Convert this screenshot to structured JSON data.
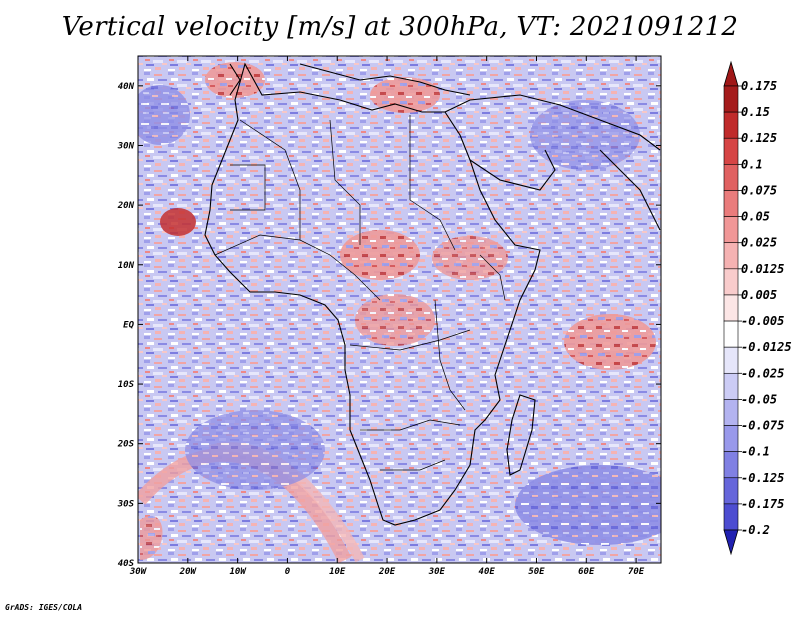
{
  "title": "Vertical velocity [m/s] at 300hPa, VT: 2021091212",
  "credit": "GrADS: IGES/COLA",
  "map": {
    "lon_range": [
      -30,
      75
    ],
    "lat_range": [
      -40,
      45
    ],
    "lat_ticks": [
      {
        "value": 40,
        "label": "40N"
      },
      {
        "value": 30,
        "label": "30N"
      },
      {
        "value": 20,
        "label": "20N"
      },
      {
        "value": 10,
        "label": "10N"
      },
      {
        "value": 0,
        "label": "EQ"
      },
      {
        "value": -10,
        "label": "10S"
      },
      {
        "value": -20,
        "label": "20S"
      },
      {
        "value": -30,
        "label": "30S"
      },
      {
        "value": -40,
        "label": "40S"
      }
    ],
    "lon_ticks": [
      {
        "value": -30,
        "label": "30W"
      },
      {
        "value": -20,
        "label": "20W"
      },
      {
        "value": -10,
        "label": "10W"
      },
      {
        "value": 0,
        "label": "0"
      },
      {
        "value": 10,
        "label": "10E"
      },
      {
        "value": 20,
        "label": "20E"
      },
      {
        "value": 30,
        "label": "30E"
      },
      {
        "value": 40,
        "label": "40E"
      },
      {
        "value": 50,
        "label": "50E"
      },
      {
        "value": 60,
        "label": "60E"
      },
      {
        "value": 70,
        "label": "70E"
      }
    ]
  },
  "colorbar": {
    "levels": [
      {
        "label": "0.175",
        "color": "#a51c1c"
      },
      {
        "label": "0.15",
        "color": "#c02b2b"
      },
      {
        "label": "0.125",
        "color": "#d64545"
      },
      {
        "label": "0.1",
        "color": "#e06161"
      },
      {
        "label": "0.075",
        "color": "#ea7c7c"
      },
      {
        "label": "0.05",
        "color": "#f19797"
      },
      {
        "label": "0.025",
        "color": "#f5b2b2"
      },
      {
        "label": "0.0125",
        "color": "#f9cccc"
      },
      {
        "label": "0.005",
        "color": "#fce6e6"
      },
      {
        "label": "-0.005",
        "color": "#ffffff"
      },
      {
        "label": "-0.0125",
        "color": "#e6e6fa"
      },
      {
        "label": "-0.025",
        "color": "#ccccf5"
      },
      {
        "label": "-0.05",
        "color": "#b3b3f0"
      },
      {
        "label": "-0.075",
        "color": "#9999eb"
      },
      {
        "label": "-0.1",
        "color": "#8080e3"
      },
      {
        "label": "-0.125",
        "color": "#6666db"
      },
      {
        "label": "-0.175",
        "color": "#4d4dd1"
      },
      {
        "label": "-0.2",
        "color": "#3333c4"
      }
    ],
    "top_arrow_color": "#a01818",
    "bottom_arrow_color": "#2020b0"
  }
}
